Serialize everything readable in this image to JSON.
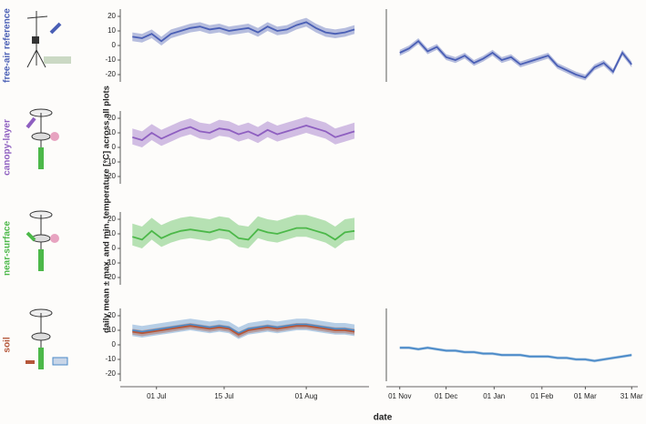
{
  "y_label": "daily mean ± max. and min. temperature [°C] across all plots",
  "x_label": "date",
  "chart_data": [
    {
      "type": "line",
      "title": "free-air reference",
      "title_color": "#4a5fb5",
      "x": [
        177,
        179,
        181,
        183,
        185,
        187,
        189,
        191,
        193,
        195,
        197,
        199,
        201,
        203,
        205,
        207,
        209,
        211,
        213,
        215,
        217,
        219,
        221,
        223
      ],
      "xlim": [
        176,
        226
      ],
      "ylim": [
        -25,
        25
      ],
      "yticks": [
        -20,
        -10,
        0,
        10,
        20
      ],
      "series": [
        {
          "color": "#4a5fb5",
          "values": [
            6,
            5,
            8,
            3,
            8,
            10,
            12,
            13,
            11,
            12,
            10,
            11,
            12,
            9,
            13,
            10,
            11,
            14,
            16,
            12,
            9,
            8,
            9,
            11
          ],
          "min": [
            3,
            2,
            5,
            0,
            5,
            7,
            9,
            10,
            8,
            9,
            7,
            8,
            9,
            6,
            10,
            7,
            8,
            11,
            13,
            9,
            6,
            5,
            6,
            8
          ],
          "max": [
            9,
            8,
            11,
            6,
            11,
            13,
            15,
            16,
            14,
            15,
            13,
            14,
            15,
            12,
            16,
            13,
            14,
            17,
            19,
            15,
            12,
            11,
            12,
            14
          ]
        }
      ]
    },
    {
      "type": "line",
      "title": "canopy-layer",
      "title_color": "#8e5fc0",
      "x": [
        177,
        179,
        181,
        183,
        185,
        187,
        189,
        191,
        193,
        195,
        197,
        199,
        201,
        203,
        205,
        207,
        209,
        211,
        213,
        215,
        217,
        219,
        221,
        223
      ],
      "xlim": [
        176,
        226
      ],
      "ylim": [
        -25,
        25
      ],
      "yticks": [
        -20,
        -10,
        0,
        10,
        20
      ],
      "series": [
        {
          "color": "#8e5fc0",
          "values": [
            7,
            5,
            10,
            6,
            9,
            12,
            14,
            11,
            10,
            13,
            12,
            9,
            11,
            8,
            12,
            9,
            11,
            13,
            15,
            13,
            11,
            7,
            9,
            11
          ],
          "min": [
            2,
            0,
            5,
            1,
            4,
            7,
            9,
            6,
            5,
            8,
            7,
            4,
            6,
            3,
            7,
            4,
            6,
            8,
            10,
            8,
            6,
            2,
            4,
            6
          ],
          "max": [
            13,
            11,
            16,
            12,
            15,
            18,
            20,
            17,
            16,
            19,
            18,
            15,
            17,
            14,
            18,
            15,
            17,
            19,
            21,
            19,
            17,
            13,
            15,
            17
          ]
        }
      ]
    },
    {
      "type": "line",
      "title": "near-surface",
      "title_color": "#4cb849",
      "x": [
        177,
        179,
        181,
        183,
        185,
        187,
        189,
        191,
        193,
        195,
        197,
        199,
        201,
        203,
        205,
        207,
        209,
        211,
        213,
        215,
        217,
        219,
        221,
        223
      ],
      "xlim": [
        176,
        226
      ],
      "ylim": [
        -25,
        25
      ],
      "yticks": [
        -20,
        -10,
        0,
        10,
        20
      ],
      "series": [
        {
          "color": "#4cb849",
          "values": [
            8,
            6,
            12,
            7,
            10,
            12,
            13,
            12,
            11,
            13,
            12,
            7,
            6,
            13,
            11,
            10,
            12,
            14,
            14,
            12,
            10,
            6,
            11,
            12
          ],
          "min": [
            2,
            0,
            6,
            1,
            4,
            6,
            7,
            6,
            5,
            7,
            6,
            1,
            0,
            7,
            5,
            4,
            6,
            8,
            8,
            6,
            4,
            0,
            5,
            6
          ],
          "max": [
            17,
            15,
            21,
            16,
            19,
            21,
            22,
            21,
            20,
            22,
            21,
            16,
            15,
            22,
            20,
            19,
            21,
            23,
            23,
            21,
            19,
            15,
            20,
            21
          ]
        }
      ]
    },
    {
      "type": "line",
      "title": "soil",
      "title_color": "#b5573a",
      "x": [
        177,
        179,
        181,
        183,
        185,
        187,
        189,
        191,
        193,
        195,
        197,
        199,
        201,
        203,
        205,
        207,
        209,
        211,
        213,
        215,
        217,
        219,
        221,
        223
      ],
      "xlim": [
        176,
        226
      ],
      "ylim": [
        -25,
        25
      ],
      "yticks": [
        -20,
        -10,
        0,
        10,
        20
      ],
      "xticks": [
        {
          "value": 182,
          "label": "01 Jul"
        },
        {
          "value": 196,
          "label": "15 Jul"
        },
        {
          "value": 213,
          "label": "01 Aug"
        }
      ],
      "series": [
        {
          "color": "#4a8ac8",
          "values": [
            10,
            9,
            10,
            11,
            12,
            13,
            14,
            13,
            12,
            13,
            12,
            8,
            11,
            12,
            13,
            12,
            13,
            14,
            14,
            13,
            12,
            11,
            11,
            10
          ],
          "min": [
            6,
            5,
            6,
            7,
            8,
            9,
            10,
            9,
            8,
            9,
            8,
            4,
            7,
            8,
            9,
            8,
            9,
            10,
            10,
            9,
            8,
            7,
            7,
            6
          ],
          "max": [
            14,
            13,
            14,
            15,
            16,
            17,
            18,
            17,
            16,
            17,
            16,
            12,
            15,
            16,
            17,
            16,
            17,
            18,
            18,
            17,
            16,
            15,
            15,
            14
          ]
        },
        {
          "color": "#b5573a",
          "values": [
            9,
            8,
            9,
            10,
            11,
            12,
            13,
            12,
            11,
            12,
            11,
            7,
            10,
            11,
            12,
            11,
            12,
            13,
            13,
            12,
            11,
            10,
            10,
            9
          ],
          "min": [
            7,
            6,
            7,
            8,
            9,
            10,
            11,
            10,
            9,
            10,
            9,
            5,
            8,
            9,
            10,
            9,
            10,
            11,
            11,
            10,
            9,
            8,
            8,
            7
          ],
          "max": [
            11,
            10,
            11,
            12,
            13,
            14,
            15,
            14,
            13,
            14,
            13,
            9,
            12,
            13,
            14,
            13,
            14,
            15,
            15,
            14,
            13,
            12,
            12,
            11
          ]
        }
      ]
    },
    {
      "type": "line",
      "x": [
        0,
        6,
        12,
        18,
        24,
        30,
        36,
        42,
        48,
        54,
        60,
        66,
        72,
        78,
        84,
        90,
        96,
        102,
        108,
        114,
        120,
        126,
        132,
        138,
        144,
        150
      ],
      "xlim": [
        -4,
        154
      ],
      "ylim": [
        -25,
        25
      ],
      "series": [
        {
          "color": "#4a5fb5",
          "values": [
            -5,
            -2,
            3,
            -4,
            -1,
            -8,
            -10,
            -7,
            -12,
            -9,
            -5,
            -10,
            -8,
            -13,
            -11,
            -9,
            -7,
            -14,
            -17,
            -20,
            -22,
            -15,
            -12,
            -18,
            -5,
            -13
          ],
          "min": [
            -7,
            -4,
            1,
            -6,
            -3,
            -10,
            -12,
            -9,
            -14,
            -11,
            -7,
            -12,
            -10,
            -15,
            -13,
            -11,
            -9,
            -16,
            -19,
            -22,
            -24,
            -17,
            -14,
            -20,
            -7,
            -15
          ],
          "max": [
            -3,
            0,
            5,
            -2,
            1,
            -6,
            -8,
            -5,
            -10,
            -7,
            -3,
            -8,
            -6,
            -11,
            -9,
            -7,
            -5,
            -12,
            -15,
            -18,
            -20,
            -13,
            -10,
            -16,
            -3,
            -11
          ]
        }
      ]
    },
    {
      "type": "line",
      "x": [
        0,
        6,
        12,
        18,
        24,
        30,
        36,
        42,
        48,
        54,
        60,
        66,
        72,
        78,
        84,
        90,
        96,
        102,
        108,
        114,
        120,
        126,
        132,
        138,
        144,
        150
      ],
      "xlim": [
        -4,
        154
      ],
      "ylim": [
        -25,
        25
      ],
      "xticks": [
        {
          "value": 0,
          "label": "01 Nov"
        },
        {
          "value": 30,
          "label": "01 Dec"
        },
        {
          "value": 61,
          "label": "01 Jan"
        },
        {
          "value": 92,
          "label": "01 Feb"
        },
        {
          "value": 120,
          "label": "01 Mar"
        },
        {
          "value": 150,
          "label": "31 Mar"
        }
      ],
      "series": [
        {
          "color": "#4a8ac8",
          "values": [
            -2,
            -2,
            -3,
            -2,
            -3,
            -4,
            -4,
            -5,
            -5,
            -6,
            -6,
            -7,
            -7,
            -7,
            -8,
            -8,
            -8,
            -9,
            -9,
            -10,
            -10,
            -11,
            -10,
            -9,
            -8,
            -7
          ],
          "min": [
            -3,
            -3,
            -4,
            -3,
            -4,
            -5,
            -5,
            -6,
            -6,
            -7,
            -7,
            -8,
            -8,
            -8,
            -9,
            -9,
            -9,
            -10,
            -10,
            -11,
            -11,
            -12,
            -11,
            -10,
            -9,
            -8
          ],
          "max": [
            -1,
            -1,
            -2,
            -1,
            -2,
            -3,
            -3,
            -4,
            -4,
            -5,
            -5,
            -6,
            -6,
            -6,
            -7,
            -7,
            -7,
            -8,
            -8,
            -9,
            -9,
            -10,
            -9,
            -8,
            -7,
            -6
          ]
        }
      ]
    }
  ]
}
